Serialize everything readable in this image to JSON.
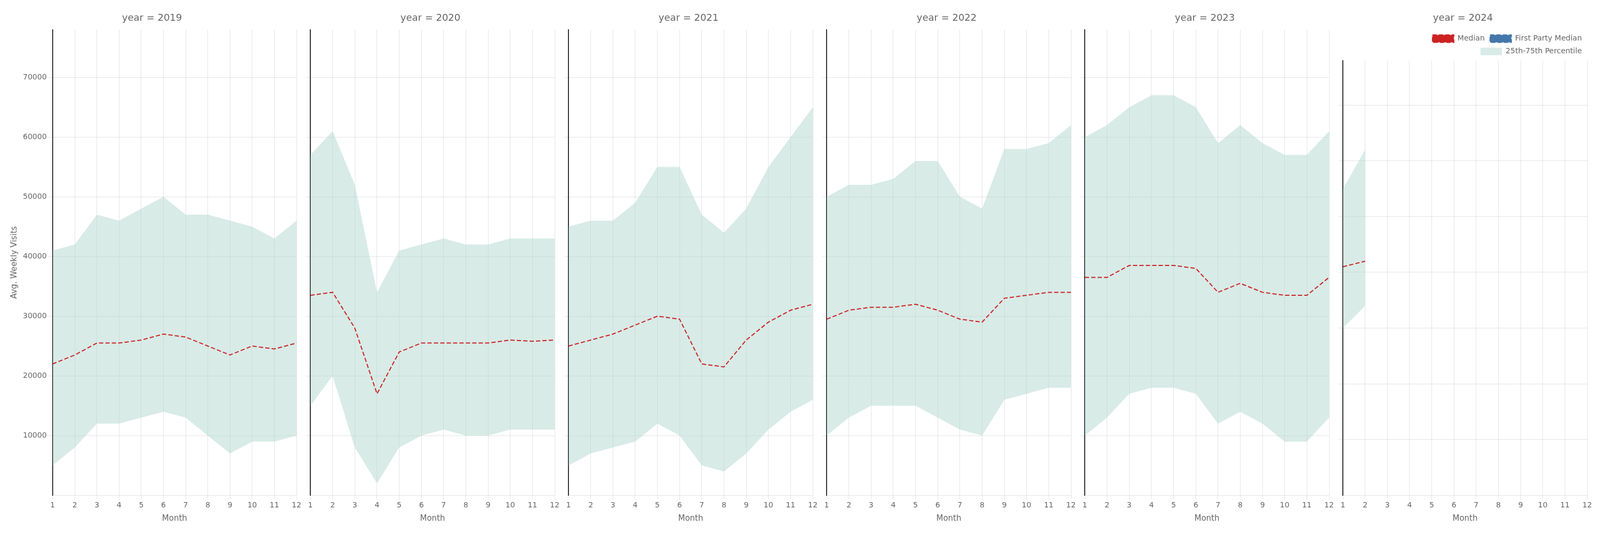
{
  "chart_data": [
    {
      "type": "line",
      "title": "year = 2019",
      "x_label": "Month",
      "y_label": "Avg. Weekly Visits",
      "x": [
        1,
        2,
        3,
        4,
        5,
        6,
        7,
        8,
        9,
        10,
        11,
        12
      ],
      "xlim": [
        1,
        12
      ],
      "xticks": [
        1,
        2,
        3,
        4,
        5,
        6,
        7,
        8,
        9,
        10,
        11,
        12
      ],
      "ylim": [
        0,
        78000
      ],
      "yticks": [
        10000,
        20000,
        30000,
        40000,
        50000,
        60000,
        70000
      ],
      "grid": true,
      "series": [
        {
          "type": "line",
          "color": "#cc2222",
          "line_style": "dashed",
          "values": [
            22000,
            23500,
            25500,
            25500,
            26000,
            27000,
            26500,
            25000,
            23500,
            25000,
            24500,
            25500
          ]
        },
        {
          "type": "band",
          "color": "#b2d8d0",
          "low": [
            5000,
            8000,
            12000,
            12000,
            13000,
            14000,
            13000,
            10000,
            7000,
            9000,
            9000,
            10000
          ],
          "high": [
            41000,
            42000,
            47000,
            46000,
            48000,
            50000,
            47000,
            47000,
            46000,
            45000,
            43000,
            46000
          ]
        }
      ]
    },
    {
      "type": "line",
      "title": "year = 2020",
      "x_label": "Month",
      "x": [
        1,
        2,
        3,
        4,
        5,
        6,
        7,
        8,
        9,
        10,
        11,
        12
      ],
      "xlim": [
        1,
        12
      ],
      "xticks": [
        1,
        2,
        3,
        4,
        5,
        6,
        7,
        8,
        9,
        10,
        11,
        12
      ],
      "ylim": [
        0,
        78000
      ],
      "yticks": [
        10000,
        20000,
        30000,
        40000,
        50000,
        60000,
        70000
      ],
      "grid": true,
      "tick_labels": "x",
      "series": [
        {
          "type": "line",
          "color": "#cc2222",
          "line_style": "dashed",
          "values": [
            33500,
            34000,
            28000,
            17000,
            24000,
            25500,
            25500,
            25500,
            25500,
            26000,
            25800,
            26000
          ]
        },
        {
          "type": "band",
          "color": "#b2d8d0",
          "low": [
            15000,
            20000,
            8000,
            2000,
            8000,
            10000,
            11000,
            10000,
            10000,
            11000,
            11000,
            11000
          ],
          "high": [
            57000,
            61000,
            52000,
            34000,
            41000,
            42000,
            43000,
            42000,
            42000,
            43000,
            43000,
            43000
          ]
        }
      ]
    },
    {
      "type": "line",
      "title": "year = 2021",
      "x_label": "Month",
      "x": [
        1,
        2,
        3,
        4,
        5,
        6,
        7,
        8,
        9,
        10,
        11,
        12
      ],
      "xlim": [
        1,
        12
      ],
      "xticks": [
        1,
        2,
        3,
        4,
        5,
        6,
        7,
        8,
        9,
        10,
        11,
        12
      ],
      "ylim": [
        0,
        78000
      ],
      "yticks": [
        10000,
        20000,
        30000,
        40000,
        50000,
        60000,
        70000
      ],
      "grid": true,
      "tick_labels": "x",
      "series": [
        {
          "type": "line",
          "color": "#cc2222",
          "line_style": "dashed",
          "values": [
            25000,
            26000,
            27000,
            28500,
            30000,
            29500,
            22000,
            21500,
            26000,
            29000,
            31000,
            32000
          ]
        },
        {
          "type": "band",
          "color": "#b2d8d0",
          "low": [
            5000,
            7000,
            8000,
            9000,
            12000,
            10000,
            5000,
            4000,
            7000,
            11000,
            14000,
            16000
          ],
          "high": [
            45000,
            46000,
            46000,
            49000,
            55000,
            55000,
            47000,
            44000,
            48000,
            55000,
            60000,
            65000
          ]
        }
      ]
    },
    {
      "type": "line",
      "title": "year = 2022",
      "x_label": "Month",
      "x": [
        1,
        2,
        3,
        4,
        5,
        6,
        7,
        8,
        9,
        10,
        11,
        12
      ],
      "xlim": [
        1,
        12
      ],
      "xticks": [
        1,
        2,
        3,
        4,
        5,
        6,
        7,
        8,
        9,
        10,
        11,
        12
      ],
      "ylim": [
        0,
        78000
      ],
      "yticks": [
        10000,
        20000,
        30000,
        40000,
        50000,
        60000,
        70000
      ],
      "grid": true,
      "tick_labels": "x",
      "series": [
        {
          "type": "line",
          "color": "#cc2222",
          "line_style": "dashed",
          "values": [
            29500,
            31000,
            31500,
            31500,
            32000,
            31000,
            29500,
            29000,
            33000,
            33500,
            34000,
            34000
          ]
        },
        {
          "type": "band",
          "color": "#b2d8d0",
          "low": [
            10000,
            13000,
            15000,
            15000,
            15000,
            13000,
            11000,
            10000,
            16000,
            17000,
            18000,
            18000
          ],
          "high": [
            50000,
            52000,
            52000,
            53000,
            56000,
            56000,
            50000,
            48000,
            58000,
            58000,
            59000,
            62000
          ]
        }
      ]
    },
    {
      "type": "line",
      "title": "year = 2023",
      "x_label": "Month",
      "x": [
        1,
        2,
        3,
        4,
        5,
        6,
        7,
        8,
        9,
        10,
        11,
        12
      ],
      "xlim": [
        1,
        12
      ],
      "xticks": [
        1,
        2,
        3,
        4,
        5,
        6,
        7,
        8,
        9,
        10,
        11,
        12
      ],
      "ylim": [
        0,
        78000
      ],
      "yticks": [
        10000,
        20000,
        30000,
        40000,
        50000,
        60000,
        70000
      ],
      "grid": true,
      "tick_labels": "x",
      "series": [
        {
          "type": "line",
          "color": "#cc2222",
          "line_style": "dashed",
          "values": [
            36500,
            36500,
            38500,
            38500,
            38500,
            38000,
            34000,
            35500,
            34000,
            33500,
            33500,
            36500
          ]
        },
        {
          "type": "band",
          "color": "#b2d8d0",
          "low": [
            10000,
            13000,
            17000,
            18000,
            18000,
            17000,
            12000,
            14000,
            12000,
            9000,
            9000,
            13000
          ],
          "high": [
            60000,
            62000,
            65000,
            67000,
            67000,
            65000,
            59000,
            62000,
            59000,
            57000,
            57000,
            61000
          ]
        }
      ]
    },
    {
      "type": "line",
      "title": "year = 2024",
      "x_label": "Month",
      "x": [
        1,
        2
      ],
      "xlim": [
        1,
        12
      ],
      "xticks": [
        1,
        2,
        3,
        4,
        5,
        6,
        7,
        8,
        9,
        10,
        11,
        12
      ],
      "ylim": [
        0,
        78000
      ],
      "yticks": [
        10000,
        20000,
        30000,
        40000,
        50000,
        60000,
        70000
      ],
      "grid": true,
      "tick_labels": "x",
      "legend": "upper right",
      "series": [
        {
          "name": "Median",
          "type": "line",
          "color": "#cc2222",
          "line_style": "dashed",
          "values": [
            41000,
            42000
          ]
        },
        {
          "name": "First Party Median",
          "type": "line",
          "color": "#4477aa",
          "line_style": "dashed",
          "values": [
            null,
            null
          ]
        },
        {
          "name": "25th-75th Percentile",
          "type": "band",
          "color": "#b2d8d0",
          "low": [
            30000,
            34000
          ],
          "high": [
            55000,
            62000
          ]
        }
      ]
    }
  ]
}
